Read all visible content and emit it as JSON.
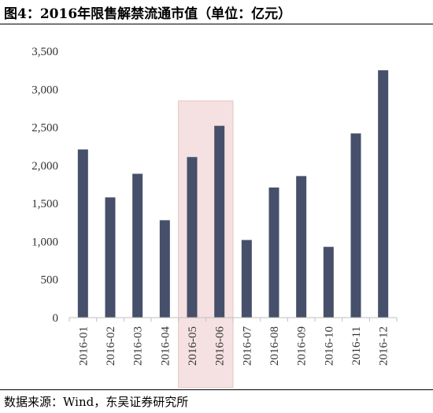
{
  "figure": {
    "title": "图4：2016年限售解禁流通市值（单位：亿元）",
    "source": "数据来源：Wind，东吴证券研究所"
  },
  "colors": {
    "bar": "#46506a",
    "highlight": "#f5e1e1",
    "highlight_border": "#e8c3c3",
    "axis": "#bfbfbf"
  },
  "chart_data": {
    "type": "bar",
    "categories": [
      "2016-01",
      "2016-02",
      "2016-03",
      "2016-04",
      "2016-05",
      "2016-06",
      "2016-07",
      "2016-08",
      "2016-09",
      "2016-10",
      "2016-11",
      "2016-12"
    ],
    "values": [
      2210,
      1580,
      1890,
      1280,
      2110,
      2520,
      1020,
      1710,
      1860,
      930,
      2420,
      3250
    ],
    "yticks": [
      0,
      500,
      1000,
      1500,
      2000,
      2500,
      3000,
      3500
    ],
    "ytick_labels": [
      "0",
      "500",
      "1,000",
      "1,500",
      "2,000",
      "2,500",
      "3,000",
      "3,500"
    ],
    "ylim": [
      0,
      3500
    ],
    "highlighted_categories": [
      "2016-05",
      "2016-06"
    ],
    "xlabel": "",
    "ylabel": "",
    "grid": false,
    "legend": "none"
  }
}
